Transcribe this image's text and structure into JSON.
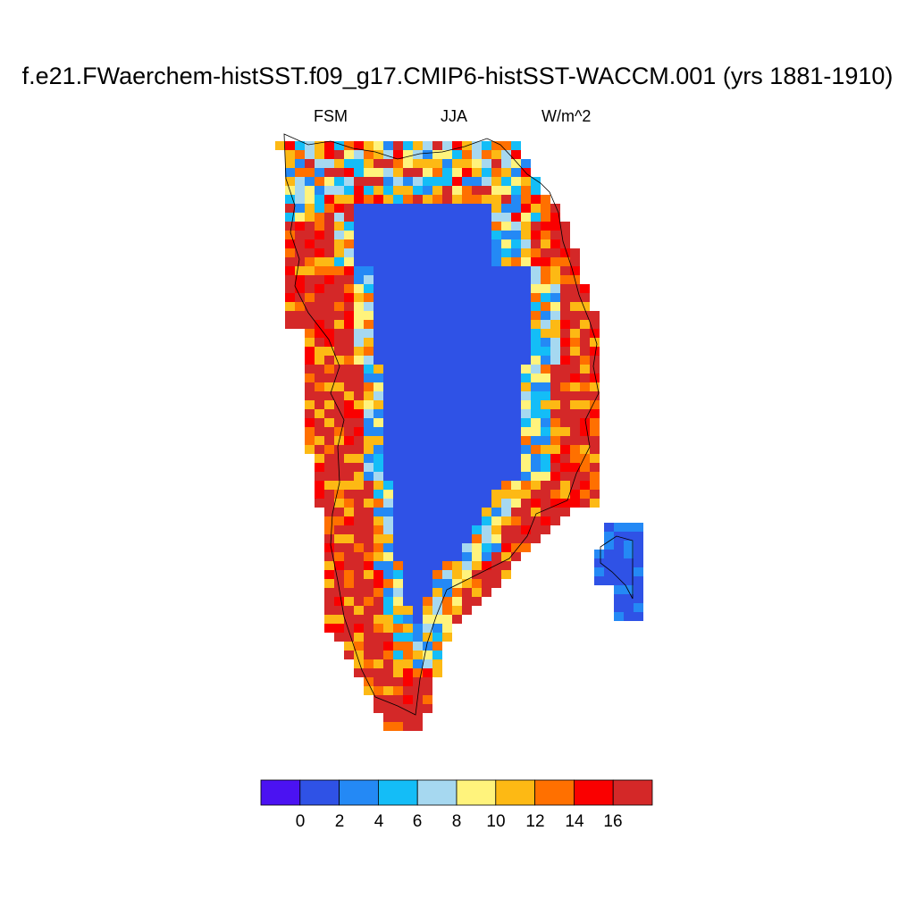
{
  "title": "f.e21.FWaerchem-histSST.f09_g17.CMIP6-histSST-WACCM.001 (yrs 1881-1910)",
  "left_label": "FSM",
  "center_label": "JJA",
  "right_label": "W/m^2",
  "colorbar": {
    "colors": [
      "#4b12f2",
      "#2f52e6",
      "#2489f5",
      "#14bdf7",
      "#a6d8f0",
      "#fff37c",
      "#fdb914",
      "#ff7000",
      "#fa0000",
      "#d42828"
    ],
    "tick_labels": [
      "0",
      "2",
      "4",
      "6",
      "8",
      "10",
      "12",
      "14",
      "16"
    ]
  }
}
